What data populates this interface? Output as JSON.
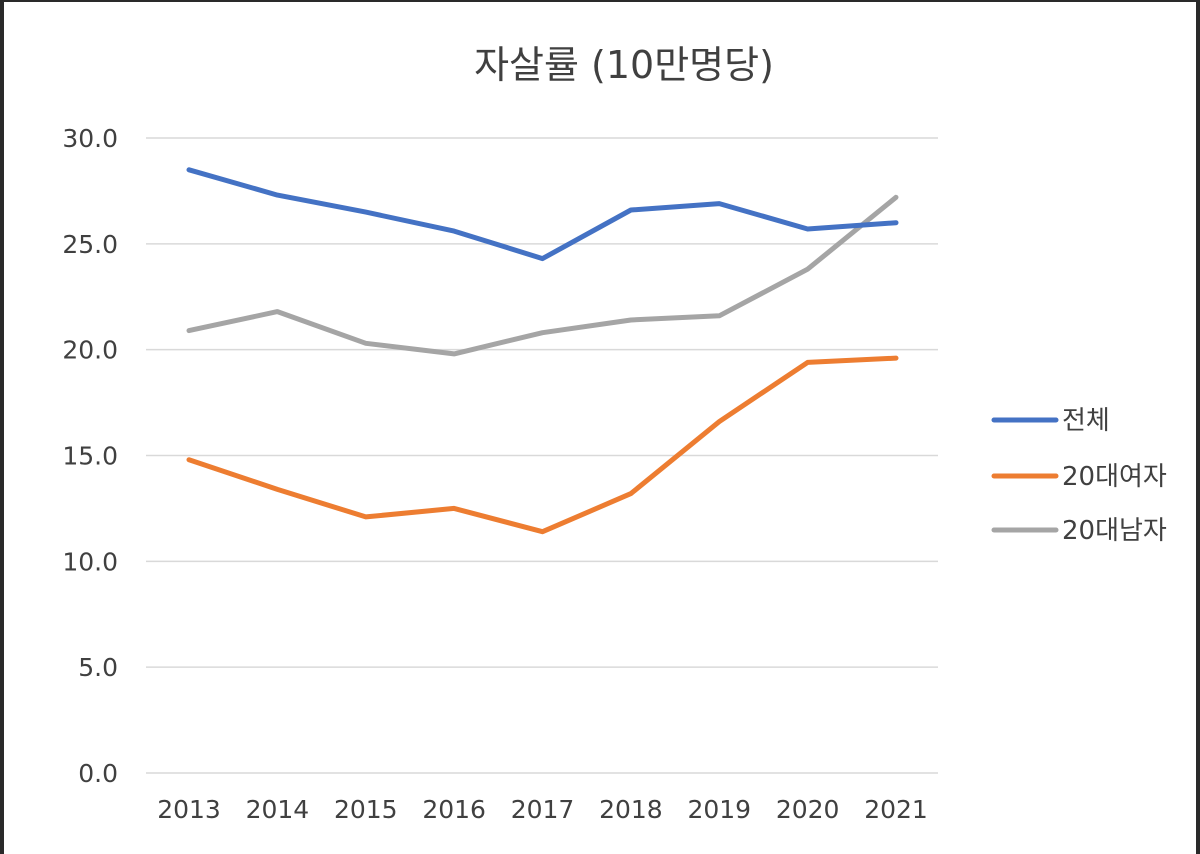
{
  "chart_data": {
    "type": "line",
    "title": "자살률 (10만명당)",
    "xlabel": "",
    "ylabel": "",
    "ylim": [
      0,
      30
    ],
    "y_ticks": [
      "0.0",
      "5.0",
      "10.0",
      "15.0",
      "20.0",
      "25.0",
      "30.0"
    ],
    "categories": [
      "2013",
      "2014",
      "2015",
      "2016",
      "2017",
      "2018",
      "2019",
      "2020",
      "2021"
    ],
    "grid": true,
    "legend_position": "right",
    "series": [
      {
        "name": "전체",
        "color": "#4472c4",
        "values": [
          28.5,
          27.3,
          26.5,
          25.6,
          24.3,
          26.6,
          26.9,
          25.7,
          26.0
        ]
      },
      {
        "name": "20대여자",
        "color": "#ed7d31",
        "values": [
          14.8,
          13.4,
          12.1,
          12.5,
          11.4,
          13.2,
          16.6,
          19.4,
          19.6
        ]
      },
      {
        "name": "20대남자",
        "color": "#a5a5a5",
        "values": [
          20.9,
          21.8,
          20.3,
          19.8,
          20.8,
          21.4,
          21.6,
          23.8,
          27.2
        ]
      }
    ]
  }
}
